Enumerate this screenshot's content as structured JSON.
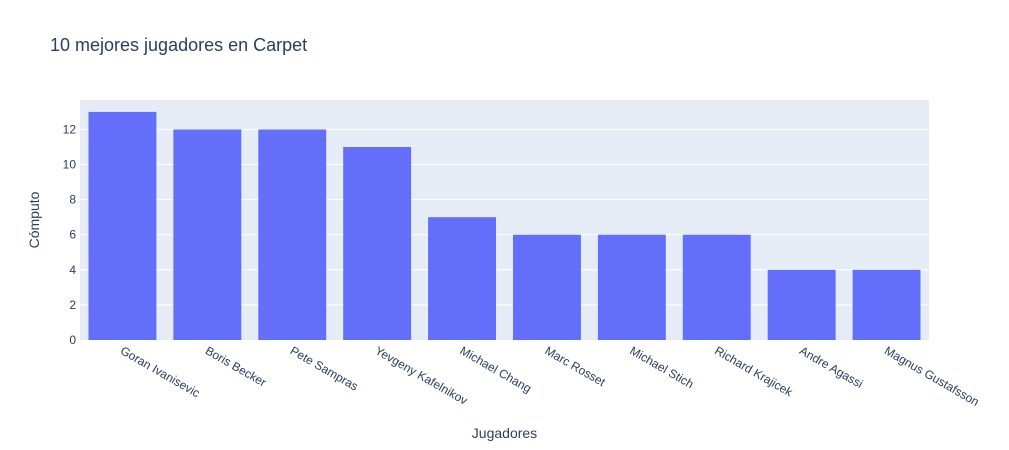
{
  "chart_data": {
    "type": "bar",
    "title": "10 mejores jugadores en Carpet",
    "xlabel": "Jugadores",
    "ylabel": "Cómputo",
    "categories": [
      "Goran Ivanisevic",
      "Boris Becker",
      "Pete Sampras",
      "Yevgeny Kafelnikov",
      "Michael Chang",
      "Marc Rosset",
      "Michael Stich",
      "Richard Krajicek",
      "Andre Agassi",
      "Magnus Gustafsson"
    ],
    "values": [
      13,
      12,
      12,
      11,
      7,
      6,
      6,
      6,
      4,
      4
    ],
    "ylim": [
      0,
      13.68
    ],
    "yticks": [
      0,
      2,
      4,
      6,
      8,
      10,
      12
    ],
    "grid": true,
    "legend": "none",
    "colors": {
      "bar": "#636efa",
      "plot_bg": "#e5ecf6",
      "grid": "#ffffff",
      "text": "#2a3f5f"
    }
  }
}
